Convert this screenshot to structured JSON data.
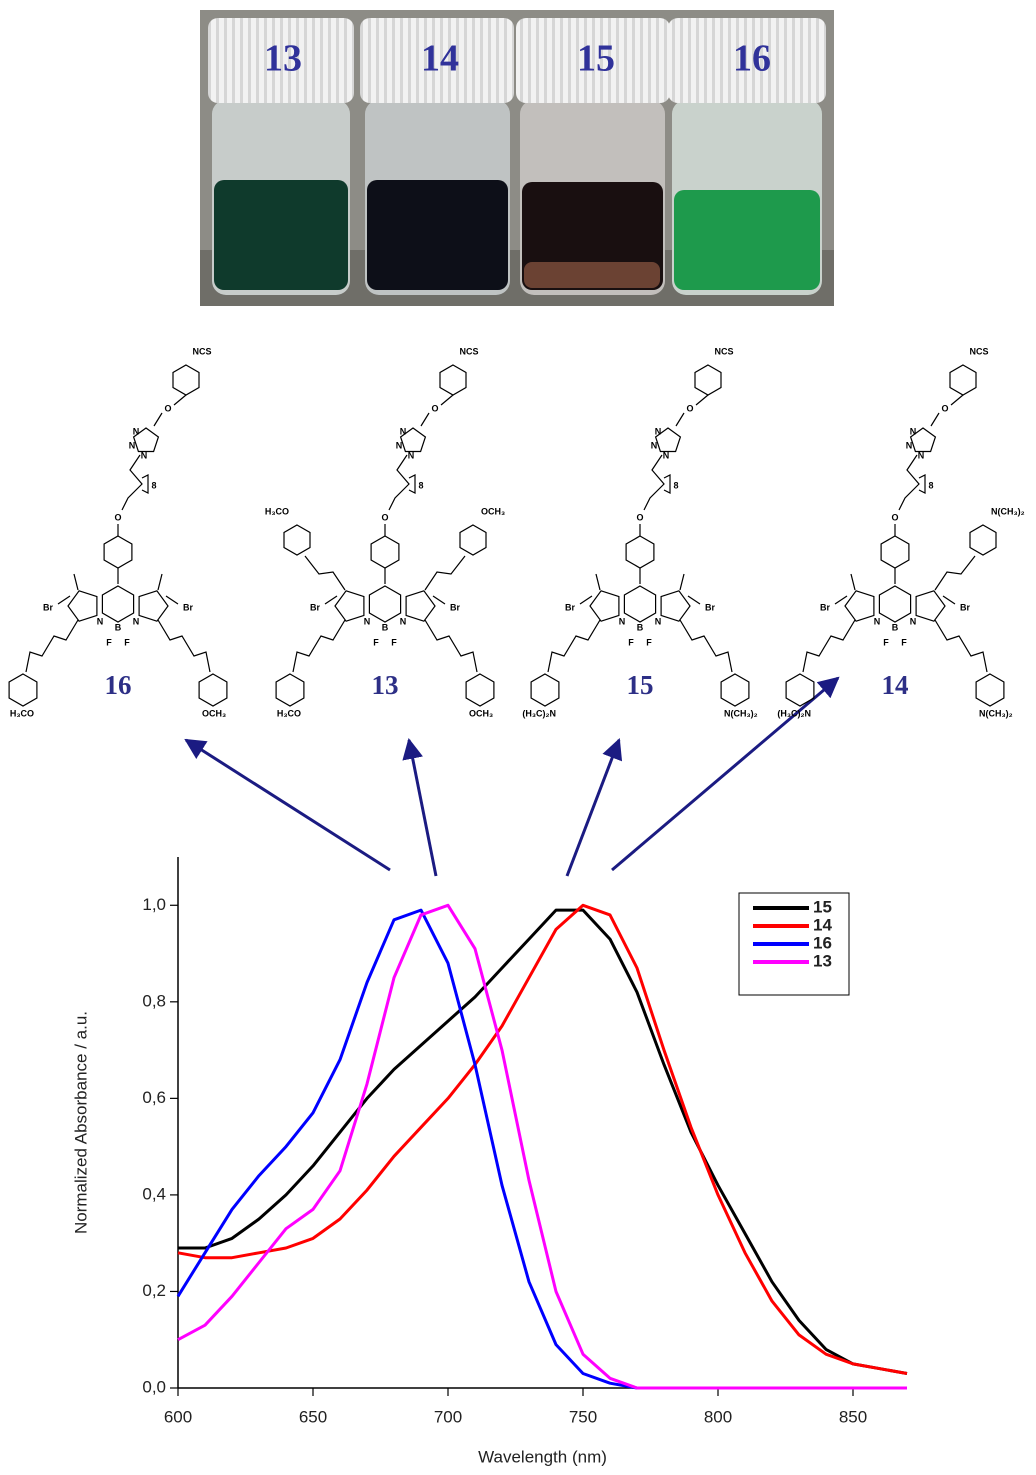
{
  "photo": {
    "labels": [
      "13",
      "14",
      "15",
      "16"
    ]
  },
  "structures": [
    {
      "label": "16",
      "top_labels": [
        "NCS",
        "O",
        "N",
        "N",
        "N",
        "8",
        "O"
      ],
      "core_labels": [
        "Br",
        "Br",
        "N",
        "N",
        "B",
        "F",
        "F"
      ],
      "lower": [
        "H₃CO",
        "OCH₃"
      ]
    },
    {
      "label": "13",
      "top_labels": [
        "NCS",
        "O",
        "N",
        "N",
        "N",
        "8",
        "O"
      ],
      "core_labels": [
        "Br",
        "Br",
        "N",
        "N",
        "B",
        "F",
        "F"
      ],
      "lower": [
        "H₃CO",
        "OCH₃"
      ],
      "upper_left": "H₃CO",
      "upper_right": "OCH₃"
    },
    {
      "label": "15",
      "top_labels": [
        "NCS",
        "O",
        "N",
        "N",
        "N",
        "8",
        "O"
      ],
      "core_labels": [
        "Br",
        "Br",
        "N",
        "N",
        "B",
        "F",
        "F"
      ],
      "lower": [
        "(H₃C)₂N",
        "N(CH₃)₂"
      ]
    },
    {
      "label": "14",
      "top_labels": [
        "NCS",
        "O",
        "N",
        "N",
        "N",
        "8",
        "O"
      ],
      "core_labels": [
        "Br",
        "Br",
        "N",
        "N",
        "B",
        "F",
        "F"
      ],
      "lower": [
        "(H₃C)₂N",
        "N(CH₃)₂"
      ],
      "upper_right": "N(CH₃)₂"
    }
  ],
  "chart_data": {
    "type": "line",
    "x_label": "Wavelength (nm)",
    "y_label": "Normalized Absorbance / a.u.",
    "x": [
      600,
      610,
      620,
      630,
      640,
      650,
      660,
      670,
      680,
      690,
      700,
      710,
      720,
      730,
      740,
      750,
      760,
      770,
      780,
      790,
      800,
      810,
      820,
      830,
      840,
      850,
      860,
      870
    ],
    "series": [
      {
        "name": "15",
        "color": "#000000",
        "values": [
          0.29,
          0.29,
          0.31,
          0.35,
          0.4,
          0.46,
          0.53,
          0.6,
          0.66,
          0.71,
          0.76,
          0.81,
          0.87,
          0.93,
          0.99,
          0.99,
          0.93,
          0.82,
          0.67,
          0.53,
          0.42,
          0.32,
          0.22,
          0.14,
          0.08,
          0.05,
          0.04,
          0.03
        ]
      },
      {
        "name": "14",
        "color": "#ff0000",
        "values": [
          0.28,
          0.27,
          0.27,
          0.28,
          0.29,
          0.31,
          0.35,
          0.41,
          0.48,
          0.54,
          0.6,
          0.67,
          0.75,
          0.85,
          0.95,
          1.0,
          0.98,
          0.87,
          0.7,
          0.54,
          0.4,
          0.28,
          0.18,
          0.11,
          0.07,
          0.05,
          0.04,
          0.03
        ]
      },
      {
        "name": "16",
        "color": "#0000ff",
        "values": [
          0.19,
          0.28,
          0.37,
          0.44,
          0.5,
          0.57,
          0.68,
          0.84,
          0.97,
          0.99,
          0.88,
          0.67,
          0.42,
          0.22,
          0.09,
          0.03,
          0.01,
          0,
          0,
          0,
          0,
          0,
          0,
          0,
          0,
          0,
          0,
          0
        ]
      },
      {
        "name": "13",
        "color": "#ff00ff",
        "values": [
          0.1,
          0.13,
          0.19,
          0.26,
          0.33,
          0.37,
          0.45,
          0.63,
          0.85,
          0.98,
          1.0,
          0.91,
          0.7,
          0.43,
          0.2,
          0.07,
          0.02,
          0,
          0,
          0,
          0,
          0,
          0,
          0,
          0,
          0,
          0,
          0
        ]
      }
    ],
    "xlim": [
      600,
      870
    ],
    "ylim": [
      0,
      1.1
    ],
    "xticks": [
      600,
      650,
      700,
      750,
      800,
      850
    ],
    "yticks": [
      {
        "value": 0,
        "label": "0,0"
      },
      {
        "value": 0.2,
        "label": "0,2"
      },
      {
        "value": 0.4,
        "label": "0,4"
      },
      {
        "value": 0.6,
        "label": "0,6"
      },
      {
        "value": 0.8,
        "label": "0,8"
      },
      {
        "value": 1.0,
        "label": "1,0"
      }
    ],
    "legend": "upper right"
  }
}
